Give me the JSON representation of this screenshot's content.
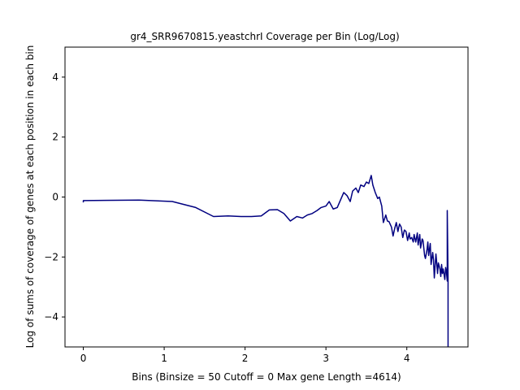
{
  "chart_data": {
    "type": "line",
    "title": "gr4_SRR9670815.yeastchrI Coverage per Bin (Log/Log)",
    "xlabel": "Bins  (Binsize = 50 Cutoff = 0 Max gene Length =4614)",
    "ylabel": "Log of sums of coverage of genes at each position in each bin",
    "xlim": [
      -0.2265,
      4.7565
    ],
    "ylim": [
      -5,
      5
    ],
    "xticks": [
      0,
      1,
      2,
      3,
      4
    ],
    "yticks": [
      -4,
      -2,
      0,
      2,
      4
    ],
    "grid": false,
    "line_color": "#000080",
    "series": [
      {
        "x": [
          0,
          0,
          0.69,
          1.1,
          1.39,
          1.61,
          1.79,
          1.95,
          2.08,
          2.2,
          2.3,
          2.4,
          2.48,
          2.56,
          2.64,
          2.71,
          2.77,
          2.83,
          2.89,
          2.94,
          3.0,
          3.04,
          3.09,
          3.14,
          3.18,
          3.22,
          3.26,
          3.3,
          3.33,
          3.37,
          3.4,
          3.43,
          3.47,
          3.5,
          3.53,
          3.56,
          3.58,
          3.61,
          3.64,
          3.66,
          3.69,
          3.71,
          3.74,
          3.76,
          3.78,
          3.81,
          3.83,
          3.85,
          3.87,
          3.89,
          3.91,
          3.93,
          3.95,
          3.97,
          3.99,
          4.01,
          4.03,
          4.04,
          4.06,
          4.08,
          4.09,
          4.11,
          4.13,
          4.14,
          4.16,
          4.17,
          4.19,
          4.2,
          4.22,
          4.23,
          4.25,
          4.26,
          4.27,
          4.29,
          4.3,
          4.32,
          4.33,
          4.34,
          4.36,
          4.37,
          4.38,
          4.39,
          4.41,
          4.42,
          4.43,
          4.44,
          4.45,
          4.47,
          4.48,
          4.49,
          4.5,
          4.5,
          4.51,
          4.51,
          4.51,
          4.51
        ],
        "y": [
          -0.18,
          -0.12,
          -0.1,
          -0.15,
          -0.35,
          -0.65,
          -0.63,
          -0.65,
          -0.65,
          -0.63,
          -0.43,
          -0.42,
          -0.55,
          -0.8,
          -0.65,
          -0.7,
          -0.6,
          -0.55,
          -0.45,
          -0.35,
          -0.3,
          -0.15,
          -0.4,
          -0.35,
          -0.1,
          0.15,
          0.05,
          -0.15,
          0.2,
          0.3,
          0.15,
          0.4,
          0.35,
          0.5,
          0.45,
          0.72,
          0.4,
          0.15,
          -0.05,
          0.0,
          -0.3,
          -0.85,
          -0.6,
          -0.8,
          -0.82,
          -1.0,
          -1.3,
          -1.05,
          -0.85,
          -1.15,
          -0.9,
          -1.0,
          -1.35,
          -1.1,
          -1.15,
          -1.45,
          -1.2,
          -1.4,
          -1.35,
          -1.5,
          -1.25,
          -1.5,
          -1.2,
          -1.6,
          -1.25,
          -1.7,
          -1.4,
          -1.45,
          -1.95,
          -2.05,
          -1.75,
          -1.5,
          -1.95,
          -1.55,
          -2.25,
          -1.85,
          -2.1,
          -2.7,
          -1.9,
          -2.2,
          -2.55,
          -2.2,
          -2.4,
          -2.65,
          -2.25,
          -2.55,
          -2.4,
          -2.75,
          -2.35,
          -2.5,
          -2.8,
          -0.45,
          -2.7,
          -3.2,
          -4.2,
          -5.0
        ]
      }
    ]
  }
}
